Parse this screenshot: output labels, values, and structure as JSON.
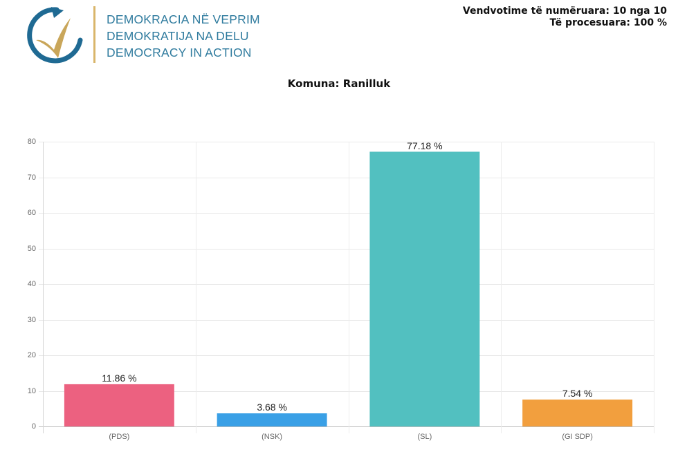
{
  "header": {
    "logo": {
      "icon": "circular-arrow-checkmark-icon",
      "lines": [
        "DEMOKRACIA NË VEPRIM",
        "DEMOKRATIJA NA DELU",
        "DEMOCRACY IN ACTION"
      ],
      "colors": {
        "arc": "#1f6a93",
        "check": "#c9a65a",
        "divider": "#d9b56a",
        "text": "#2f7b9e"
      }
    },
    "stats": {
      "polling_stations": "Vendvotime të numëruara: 10 nga 10",
      "processed": "Të procesuara: 100 %"
    }
  },
  "chart_data": {
    "type": "bar",
    "title": "Komuna: Ranilluk",
    "xlabel": "",
    "ylabel": "",
    "categories": [
      "(PDS)",
      "(NSK)",
      "(SL)",
      "(GI SDP)"
    ],
    "values": [
      11.86,
      3.68,
      77.18,
      7.54
    ],
    "value_labels": [
      "11.86 %",
      "3.68 %",
      "77.18 %",
      "7.54 %"
    ],
    "colors": [
      "#ec6180",
      "#3aa0e6",
      "#52c0c0",
      "#f29f3e"
    ],
    "ylim": [
      0,
      80
    ],
    "yticks": [
      0,
      10,
      20,
      30,
      40,
      50,
      60,
      70,
      80
    ],
    "grid": true,
    "legend": "none"
  }
}
